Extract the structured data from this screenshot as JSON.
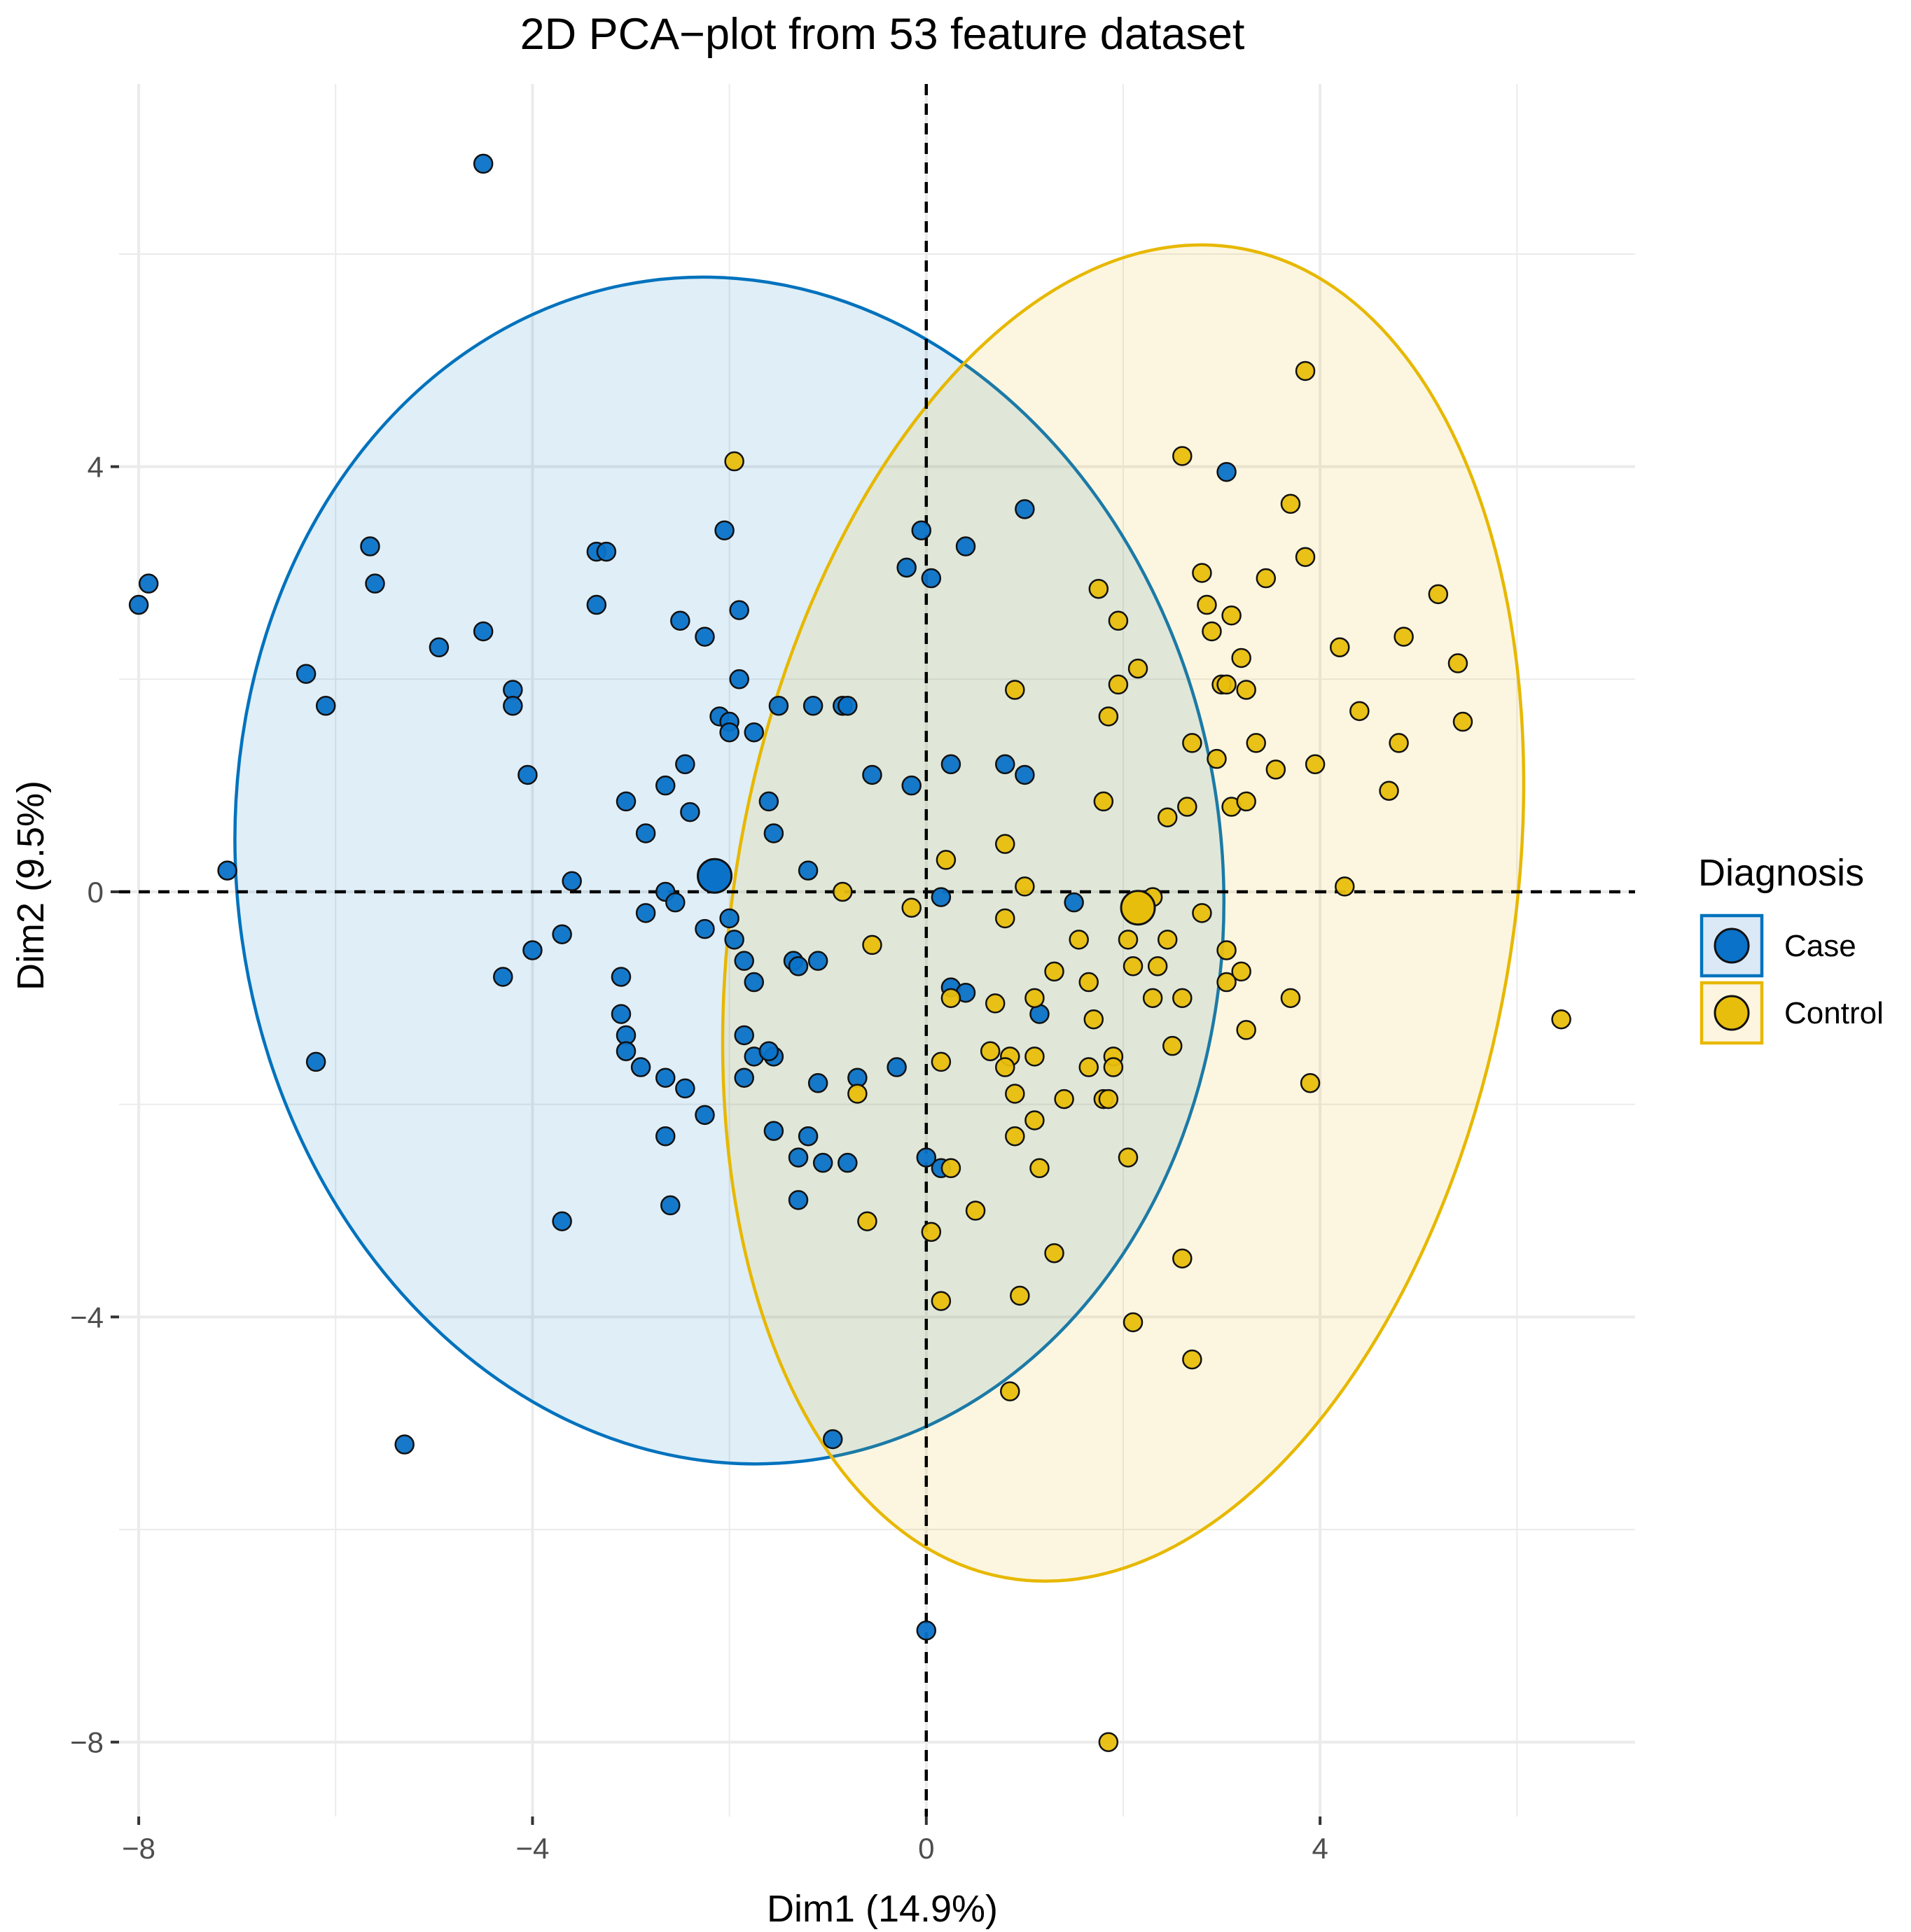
{
  "chart_data": {
    "type": "scatter",
    "title": "2D PCA−plot from  53  feature dataset",
    "xlabel": "Dim1 (14.9%)",
    "ylabel": "Dim2 (9.5%)",
    "xlim": [
      -8.2,
      7.2
    ],
    "ylim": [
      -8.7,
      7.6
    ],
    "x_ticks": [
      -8,
      -4,
      0,
      4
    ],
    "x_tick_labels": [
      "−8",
      "−4",
      "0",
      "4"
    ],
    "y_ticks": [
      -8,
      -4,
      0,
      4
    ],
    "y_tick_labels": [
      "−8",
      "−4",
      "0",
      "4"
    ],
    "grid": true,
    "reference_lines": {
      "x": 0,
      "y": 0,
      "style": "dashed"
    },
    "legend": {
      "title": "Diagnosis",
      "position": "right",
      "entries": [
        "Case",
        "Control"
      ]
    },
    "series": [
      {
        "name": "Case",
        "color": "#0072BD",
        "fill": "#0a72c8",
        "ellipse_fill": "#dbe9f6",
        "centroid": [
          -2.15,
          0.15
        ],
        "ellipse": {
          "center": [
            -2.0,
            0.2
          ],
          "semi_axis_x": 5.0,
          "semi_axis_y": 5.6,
          "angle_deg": -8
        },
        "points": [
          [
            -4.5,
            6.85
          ],
          [
            -7.9,
            2.9
          ],
          [
            -8.0,
            2.7
          ],
          [
            -7.1,
            0.2
          ],
          [
            -6.3,
            2.05
          ],
          [
            -6.1,
            1.75
          ],
          [
            -6.2,
            -1.6
          ],
          [
            -5.65,
            3.25
          ],
          [
            -5.6,
            2.9
          ],
          [
            -4.95,
            2.3
          ],
          [
            -4.5,
            2.45
          ],
          [
            -4.2,
            1.9
          ],
          [
            -4.2,
            1.75
          ],
          [
            -4.05,
            1.1
          ],
          [
            -4.3,
            -0.8
          ],
          [
            -4.0,
            -0.55
          ],
          [
            -3.7,
            -0.4
          ],
          [
            -3.6,
            0.1
          ],
          [
            -3.35,
            3.2
          ],
          [
            -3.25,
            3.2
          ],
          [
            -3.35,
            2.7
          ],
          [
            -3.05,
            0.85
          ],
          [
            -2.85,
            0.55
          ],
          [
            -2.65,
            1.0
          ],
          [
            -2.65,
            0.0
          ],
          [
            -2.55,
            -0.1
          ],
          [
            -2.45,
            1.2
          ],
          [
            -2.4,
            0.75
          ],
          [
            -2.85,
            -0.2
          ],
          [
            -3.1,
            -0.8
          ],
          [
            -3.1,
            -1.15
          ],
          [
            -3.05,
            -1.35
          ],
          [
            -3.05,
            -1.5
          ],
          [
            -2.9,
            -1.65
          ],
          [
            -2.65,
            -1.75
          ],
          [
            -2.45,
            -1.85
          ],
          [
            -2.25,
            -2.1
          ],
          [
            -2.65,
            -2.3
          ],
          [
            -2.6,
            -2.95
          ],
          [
            -3.7,
            -3.1
          ],
          [
            -5.3,
            -5.2
          ],
          [
            -2.5,
            2.55
          ],
          [
            -2.25,
            2.4
          ],
          [
            -2.1,
            1.65
          ],
          [
            -2.0,
            1.6
          ],
          [
            -2.0,
            1.5
          ],
          [
            -1.9,
            2.0
          ],
          [
            -1.9,
            2.65
          ],
          [
            -2.05,
            3.4
          ],
          [
            -1.75,
            1.5
          ],
          [
            -1.6,
            0.85
          ],
          [
            -1.55,
            0.55
          ],
          [
            -1.5,
            1.75
          ],
          [
            -2.25,
            -0.35
          ],
          [
            -2.0,
            -0.25
          ],
          [
            -1.95,
            -0.45
          ],
          [
            -1.85,
            -0.65
          ],
          [
            -1.75,
            -0.85
          ],
          [
            -1.85,
            -1.35
          ],
          [
            -1.75,
            -1.55
          ],
          [
            -1.55,
            -1.55
          ],
          [
            -1.6,
            -1.5
          ],
          [
            -1.85,
            -1.75
          ],
          [
            -1.55,
            -2.25
          ],
          [
            -1.35,
            -0.65
          ],
          [
            -1.3,
            -0.7
          ],
          [
            -1.1,
            -0.65
          ],
          [
            -1.15,
            1.75
          ],
          [
            -0.85,
            1.75
          ],
          [
            -0.8,
            1.75
          ],
          [
            -1.2,
            0.2
          ],
          [
            -1.1,
            -1.8
          ],
          [
            -0.7,
            -1.75
          ],
          [
            -1.05,
            -2.55
          ],
          [
            -1.2,
            -2.3
          ],
          [
            -1.3,
            -2.5
          ],
          [
            -1.3,
            -2.9
          ],
          [
            -0.8,
            -2.55
          ],
          [
            -0.3,
            -1.65
          ],
          [
            -0.55,
            1.1
          ],
          [
            -0.15,
            1.0
          ],
          [
            -0.2,
            3.05
          ],
          [
            -0.05,
            3.4
          ],
          [
            0.05,
            2.95
          ],
          [
            0.4,
            3.25
          ],
          [
            0.25,
            1.2
          ],
          [
            0.8,
            1.2
          ],
          [
            1.0,
            1.1
          ],
          [
            1.0,
            3.6
          ],
          [
            -0.95,
            -5.15
          ],
          [
            0.15,
            -0.05
          ],
          [
            1.5,
            -0.1
          ],
          [
            0.25,
            -0.9
          ],
          [
            0.4,
            -0.95
          ],
          [
            0.0,
            -2.5
          ],
          [
            0.15,
            -2.6
          ],
          [
            1.15,
            -1.15
          ],
          [
            0.0,
            -6.95
          ],
          [
            3.05,
            3.95
          ],
          [
            -2.1,
            0.1
          ]
        ]
      },
      {
        "name": "Control",
        "color": "#E7B800",
        "fill": "#e8be0c",
        "ellipse_fill": "#fdf5e0",
        "centroid": [
          2.15,
          -0.15
        ],
        "ellipse": {
          "center": [
            2.0,
            -0.2
          ],
          "semi_axis_x": 3.95,
          "semi_axis_y": 6.35,
          "angle_deg": 10
        },
        "points": [
          [
            3.85,
            4.9
          ],
          [
            2.6,
            4.1
          ],
          [
            3.7,
            3.65
          ],
          [
            3.85,
            3.15
          ],
          [
            2.8,
            3.0
          ],
          [
            3.45,
            2.95
          ],
          [
            5.2,
            2.8
          ],
          [
            1.75,
            2.85
          ],
          [
            2.85,
            2.7
          ],
          [
            3.1,
            2.6
          ],
          [
            1.95,
            2.55
          ],
          [
            2.9,
            2.45
          ],
          [
            4.85,
            2.4
          ],
          [
            4.2,
            2.3
          ],
          [
            3.2,
            2.2
          ],
          [
            2.15,
            2.1
          ],
          [
            5.4,
            2.15
          ],
          [
            3.0,
            1.95
          ],
          [
            3.05,
            1.95
          ],
          [
            3.25,
            1.9
          ],
          [
            1.95,
            1.95
          ],
          [
            0.9,
            1.9
          ],
          [
            4.4,
            1.7
          ],
          [
            1.85,
            1.65
          ],
          [
            5.45,
            1.6
          ],
          [
            2.7,
            1.4
          ],
          [
            3.35,
            1.4
          ],
          [
            4.8,
            1.4
          ],
          [
            2.95,
            1.25
          ],
          [
            3.55,
            1.15
          ],
          [
            3.95,
            1.2
          ],
          [
            4.7,
            0.95
          ],
          [
            1.8,
            0.85
          ],
          [
            3.1,
            0.8
          ],
          [
            3.25,
            0.85
          ],
          [
            2.65,
            0.8
          ],
          [
            2.45,
            0.7
          ],
          [
            0.8,
            0.45
          ],
          [
            0.2,
            0.3
          ],
          [
            1.0,
            0.05
          ],
          [
            -0.85,
            0.0
          ],
          [
            2.3,
            -0.05
          ],
          [
            4.25,
            0.05
          ],
          [
            -0.15,
            -0.15
          ],
          [
            0.8,
            -0.25
          ],
          [
            1.55,
            -0.45
          ],
          [
            2.05,
            -0.45
          ],
          [
            2.45,
            -0.45
          ],
          [
            2.8,
            -0.2
          ],
          [
            -0.55,
            -0.5
          ],
          [
            3.05,
            -0.55
          ],
          [
            1.3,
            -0.75
          ],
          [
            2.1,
            -0.7
          ],
          [
            2.35,
            -0.7
          ],
          [
            3.2,
            -0.75
          ],
          [
            1.65,
            -0.85
          ],
          [
            3.05,
            -0.85
          ],
          [
            2.3,
            -1.0
          ],
          [
            2.6,
            -1.0
          ],
          [
            3.7,
            -1.0
          ],
          [
            0.25,
            -1.0
          ],
          [
            0.7,
            -1.05
          ],
          [
            1.1,
            -1.0
          ],
          [
            1.7,
            -1.2
          ],
          [
            3.25,
            -1.3
          ],
          [
            2.5,
            -1.45
          ],
          [
            0.65,
            -1.5
          ],
          [
            0.85,
            -1.55
          ],
          [
            1.1,
            -1.55
          ],
          [
            1.9,
            -1.55
          ],
          [
            0.8,
            -1.65
          ],
          [
            1.65,
            -1.65
          ],
          [
            1.9,
            -1.65
          ],
          [
            0.15,
            -1.6
          ],
          [
            3.9,
            -1.8
          ],
          [
            0.9,
            -1.9
          ],
          [
            1.4,
            -1.95
          ],
          [
            1.8,
            -1.95
          ],
          [
            1.85,
            -1.95
          ],
          [
            -0.7,
            -1.9
          ],
          [
            1.1,
            -2.15
          ],
          [
            0.9,
            -2.3
          ],
          [
            2.05,
            -2.5
          ],
          [
            1.15,
            -2.6
          ],
          [
            0.25,
            -2.6
          ],
          [
            0.5,
            -3.0
          ],
          [
            -0.6,
            -3.1
          ],
          [
            0.05,
            -3.2
          ],
          [
            1.3,
            -3.4
          ],
          [
            2.6,
            -3.45
          ],
          [
            0.95,
            -3.8
          ],
          [
            0.15,
            -3.85
          ],
          [
            2.1,
            -4.05
          ],
          [
            2.7,
            -4.4
          ],
          [
            0.85,
            -4.7
          ],
          [
            6.45,
            -1.2
          ],
          [
            1.85,
            -8.0
          ],
          [
            -1.95,
            4.05
          ]
        ]
      }
    ]
  }
}
